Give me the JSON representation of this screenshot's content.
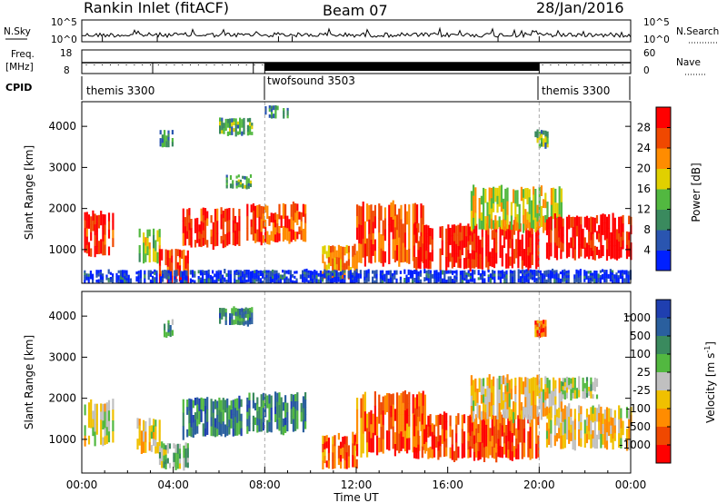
{
  "header": {
    "station": "Rankin Inlet (fitACF)",
    "beam": "Beam 07",
    "date": "28/Jan/2016"
  },
  "noise_panel": {
    "left_label": "N.Sky",
    "right_label": "N.Search",
    "left_ticks": [
      "10^5",
      "10^0"
    ],
    "right_ticks": [
      "10^5",
      "10^0"
    ]
  },
  "freq_panel": {
    "left_label_1": "Freq.",
    "left_label_2": "[MHz]",
    "right_label": "Nave",
    "left_ticks": [
      "18",
      "8"
    ],
    "right_ticks": [
      "60",
      "0"
    ]
  },
  "cpid_panel": {
    "label": "CPID",
    "segments": [
      {
        "name": "themis 3300",
        "start_h": 0,
        "end_h": 8
      },
      {
        "name": "twofsound 3503",
        "start_h": 8,
        "end_h": 20
      },
      {
        "name": "themis 3300",
        "start_h": 20,
        "end_h": 24
      }
    ]
  },
  "chart_data": [
    {
      "type": "heatmap",
      "title": "Power",
      "xlabel": "Time UT",
      "ylabel": "Slant Range [km]",
      "xlim_hours": [
        0,
        24
      ],
      "ylim": [
        180,
        4600
      ],
      "yticks": [
        "1000",
        "2000",
        "3000",
        "4000"
      ],
      "colorbar": {
        "label": "Power [dB]",
        "ticks": [
          "4",
          "8",
          "12",
          "16",
          "20",
          "24",
          "28"
        ],
        "range": [
          0,
          30
        ],
        "colors": [
          "#0020ff",
          "#2a55b0",
          "#3a8a5e",
          "#52b840",
          "#e0d000",
          "#ff8c00",
          "#f04800",
          "#ff0000"
        ]
      },
      "features": [
        {
          "t0": 0.1,
          "t1": 1.4,
          "r0": 900,
          "r1": 1900,
          "level": 0.9
        },
        {
          "t0": 2.4,
          "t1": 3.4,
          "r0": 700,
          "r1": 1500,
          "level": 0.5
        },
        {
          "t0": 3.2,
          "t1": 4.6,
          "r0": 200,
          "r1": 1000,
          "level": 0.85
        },
        {
          "t0": 4.4,
          "t1": 7.0,
          "r0": 1100,
          "r1": 2000,
          "level": 0.9
        },
        {
          "t0": 7.2,
          "t1": 9.8,
          "r0": 1200,
          "r1": 2100,
          "level": 0.8
        },
        {
          "t0": 3.4,
          "t1": 4.0,
          "r0": 3500,
          "r1": 3900,
          "level": 0.3
        },
        {
          "t0": 6.0,
          "t1": 7.4,
          "r0": 3800,
          "r1": 4200,
          "level": 0.4
        },
        {
          "t0": 6.3,
          "t1": 7.4,
          "r0": 2500,
          "r1": 2800,
          "level": 0.35
        },
        {
          "t0": 8.0,
          "t1": 9.0,
          "r0": 4200,
          "r1": 4500,
          "level": 0.3
        },
        {
          "t0": 10.5,
          "t1": 12.0,
          "r0": 300,
          "r1": 1100,
          "level": 0.7
        },
        {
          "t0": 12.0,
          "t1": 15.0,
          "r0": 700,
          "r1": 2100,
          "level": 0.8
        },
        {
          "t0": 14.5,
          "t1": 20.0,
          "r0": 550,
          "r1": 1600,
          "level": 0.95
        },
        {
          "t0": 17.0,
          "t1": 21.0,
          "r0": 1500,
          "r1": 2500,
          "level": 0.55
        },
        {
          "t0": 20.3,
          "t1": 24.0,
          "r0": 800,
          "r1": 1800,
          "level": 0.95
        },
        {
          "t0": 19.8,
          "t1": 20.4,
          "r0": 3500,
          "r1": 3900,
          "level": 0.4
        },
        {
          "t0": 0.0,
          "t1": 24.0,
          "r0": 200,
          "r1": 500,
          "level": 0.1
        }
      ]
    },
    {
      "type": "heatmap",
      "title": "Velocity",
      "xlabel": "Time UT",
      "ylabel": "Slant Range [km]",
      "xlim_hours": [
        0,
        24
      ],
      "ylim": [
        180,
        4600
      ],
      "xticks": [
        "00:00",
        "04:00",
        "08:00",
        "12:00",
        "16:00",
        "20:00",
        "00:00"
      ],
      "yticks": [
        "1000",
        "2000",
        "3000",
        "4000"
      ],
      "colorbar": {
        "label": "Velocity [m s^-1]",
        "ticks": [
          "1000",
          "500",
          "100",
          "25",
          "-25",
          "-100",
          "-500",
          "-1000"
        ],
        "colors": [
          "#1f3fb0",
          "#2a5f9e",
          "#3a8a5e",
          "#52b840",
          "#c0c0c0",
          "#f0c000",
          "#ff8c00",
          "#f04800",
          "#ff0000"
        ]
      },
      "features": [
        {
          "t0": 0.1,
          "t1": 1.4,
          "r0": 900,
          "r1": 1900,
          "level": 0.5
        },
        {
          "t0": 2.4,
          "t1": 3.4,
          "r0": 700,
          "r1": 1500,
          "level": 0.55
        },
        {
          "t0": 3.2,
          "t1": 4.6,
          "r0": 300,
          "r1": 900,
          "level": 0.4
        },
        {
          "t0": 4.4,
          "t1": 7.0,
          "r0": 1100,
          "r1": 2000,
          "level": 0.25
        },
        {
          "t0": 7.2,
          "t1": 9.8,
          "r0": 1200,
          "r1": 2100,
          "level": 0.25
        },
        {
          "t0": 3.4,
          "t1": 4.0,
          "r0": 3500,
          "r1": 3900,
          "level": 0.3
        },
        {
          "t0": 6.0,
          "t1": 7.4,
          "r0": 3800,
          "r1": 4200,
          "level": 0.25
        },
        {
          "t0": 10.5,
          "t1": 12.0,
          "r0": 300,
          "r1": 1100,
          "level": 0.8
        },
        {
          "t0": 12.0,
          "t1": 15.0,
          "r0": 700,
          "r1": 2100,
          "level": 0.8
        },
        {
          "t0": 14.5,
          "t1": 20.0,
          "r0": 550,
          "r1": 1600,
          "level": 0.85
        },
        {
          "t0": 17.0,
          "t1": 21.0,
          "r0": 1500,
          "r1": 2500,
          "level": 0.6
        },
        {
          "t0": 20.3,
          "t1": 24.0,
          "r0": 800,
          "r1": 1800,
          "level": 0.6
        },
        {
          "t0": 21.0,
          "t1": 22.5,
          "r0": 2000,
          "r1": 2500,
          "level": 0.45
        },
        {
          "t0": 19.8,
          "t1": 20.4,
          "r0": 3500,
          "r1": 3900,
          "level": 0.8
        }
      ]
    }
  ]
}
